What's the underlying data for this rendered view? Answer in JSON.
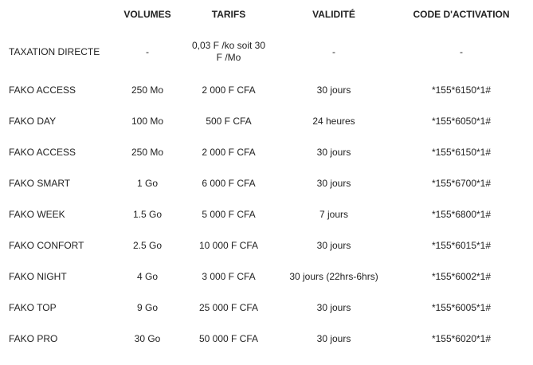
{
  "table": {
    "headers": [
      "",
      "VOLUMES",
      "TARIFS",
      "VALIDITÉ",
      "CODE D'ACTIVATION"
    ],
    "rows": [
      {
        "name": "TAXATION DIRECTE",
        "volume": "-",
        "tarif": "0,03 F /ko soit 30 F /Mo",
        "validite": "-",
        "code": "-"
      },
      {
        "name": "FAKO ACCESS",
        "volume": "250 Mo",
        "tarif": "2 000 F CFA",
        "validite": "30 jours",
        "code": "*155*6150*1#"
      },
      {
        "name": "FAKO DAY",
        "volume": "100 Mo",
        "tarif": "500 F CFA",
        "validite": "24 heures",
        "code": "*155*6050*1#"
      },
      {
        "name": "FAKO ACCESS",
        "volume": "250 Mo",
        "tarif": "2 000 F CFA",
        "validite": "30 jours",
        "code": "*155*6150*1#"
      },
      {
        "name": "FAKO SMART",
        "volume": "1 Go",
        "tarif": "6 000 F CFA",
        "validite": "30 jours",
        "code": "*155*6700*1#"
      },
      {
        "name": "FAKO WEEK",
        "volume": "1.5 Go",
        "tarif": "5 000 F CFA",
        "validite": "7 jours",
        "code": "*155*6800*1#"
      },
      {
        "name": "FAKO CONFORT",
        "volume": "2.5 Go",
        "tarif": "10 000 F CFA",
        "validite": "30 jours",
        "code": "*155*6015*1#"
      },
      {
        "name": "FAKO NIGHT",
        "volume": "4 Go",
        "tarif": "3 000 F CFA",
        "validite": "30 jours (22hrs-6hrs)",
        "code": "*155*6002*1#"
      },
      {
        "name": "FAKO TOP",
        "volume": "9 Go",
        "tarif": "25 000 F CFA",
        "validite": "30 jours",
        "code": "*155*6005*1#"
      },
      {
        "name": "FAKO PRO",
        "volume": "30 Go",
        "tarif": "50 000 F CFA",
        "validite": "30 jours",
        "code": "*155*6020*1#"
      }
    ]
  }
}
